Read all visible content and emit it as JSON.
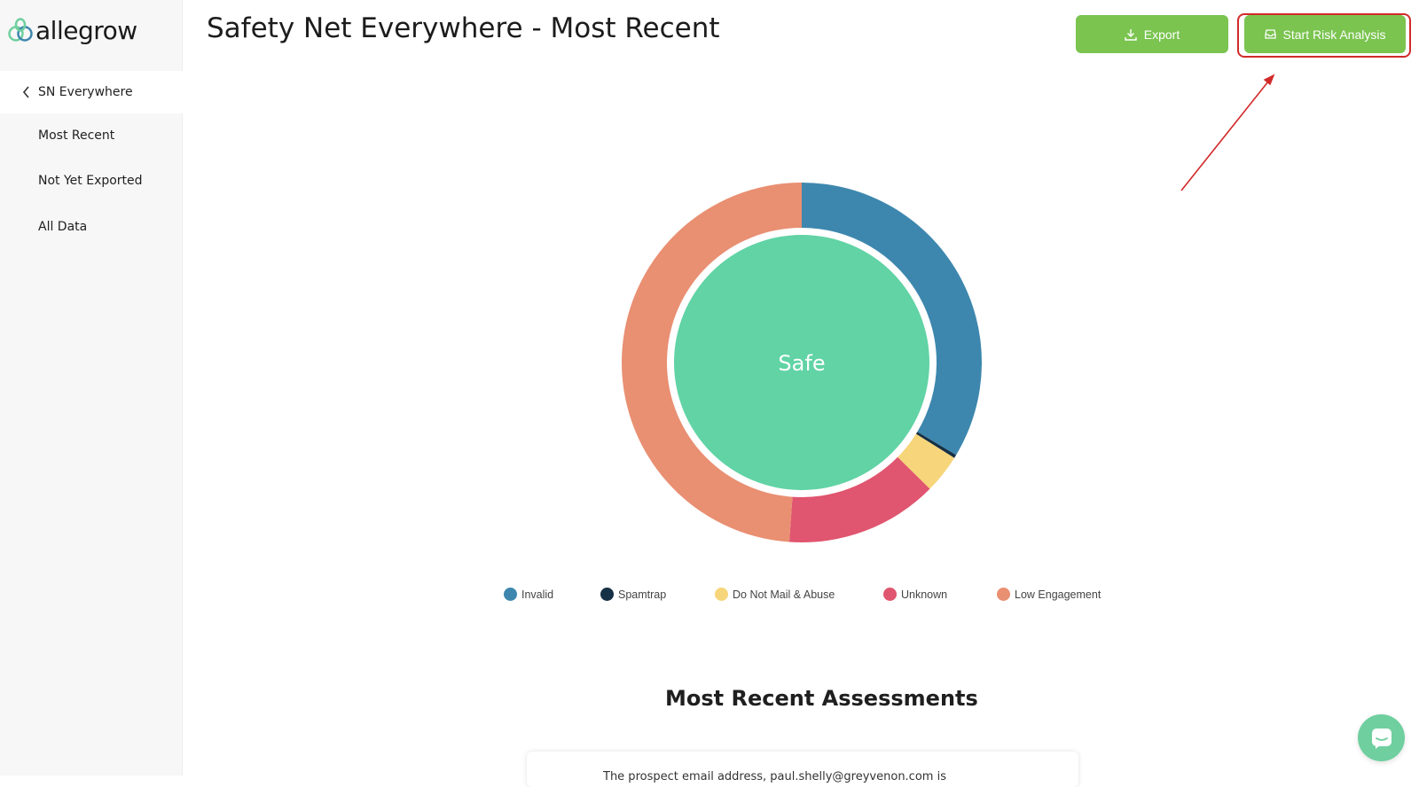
{
  "app": {
    "logo_text": "allegrow"
  },
  "sidebar": {
    "back_label": "SN Everywhere",
    "items": [
      {
        "label": "Most Recent"
      },
      {
        "label": "Not Yet Exported"
      },
      {
        "label": "All Data"
      }
    ]
  },
  "header": {
    "title": "Safety Net Everywhere - Most Recent",
    "export_label": "Export",
    "risk_label": "Start Risk Analysis"
  },
  "chart_data": {
    "type": "pie",
    "center_label": "Safe",
    "center_color": "#61d3a5",
    "series": [
      {
        "name": "Invalid",
        "value": 33.6,
        "color": "#3d87ae"
      },
      {
        "name": "Spamtrap",
        "value": 0.3,
        "color": "#163045"
      },
      {
        "name": "Do Not Mail & Abuse",
        "value": 3.5,
        "color": "#f7d57a"
      },
      {
        "name": "Unknown",
        "value": 13.7,
        "color": "#e0556f"
      },
      {
        "name": "Low Engagement",
        "value": 48.9,
        "color": "#e98f72"
      }
    ],
    "legend_position": "bottom"
  },
  "assessments": {
    "title": "Most Recent Assessments",
    "first_card_text": "The prospect email address, paul.shelly@greyvenon.com is"
  },
  "colors": {
    "accent": "#7ac44f",
    "annotation": "#d22a2a"
  }
}
